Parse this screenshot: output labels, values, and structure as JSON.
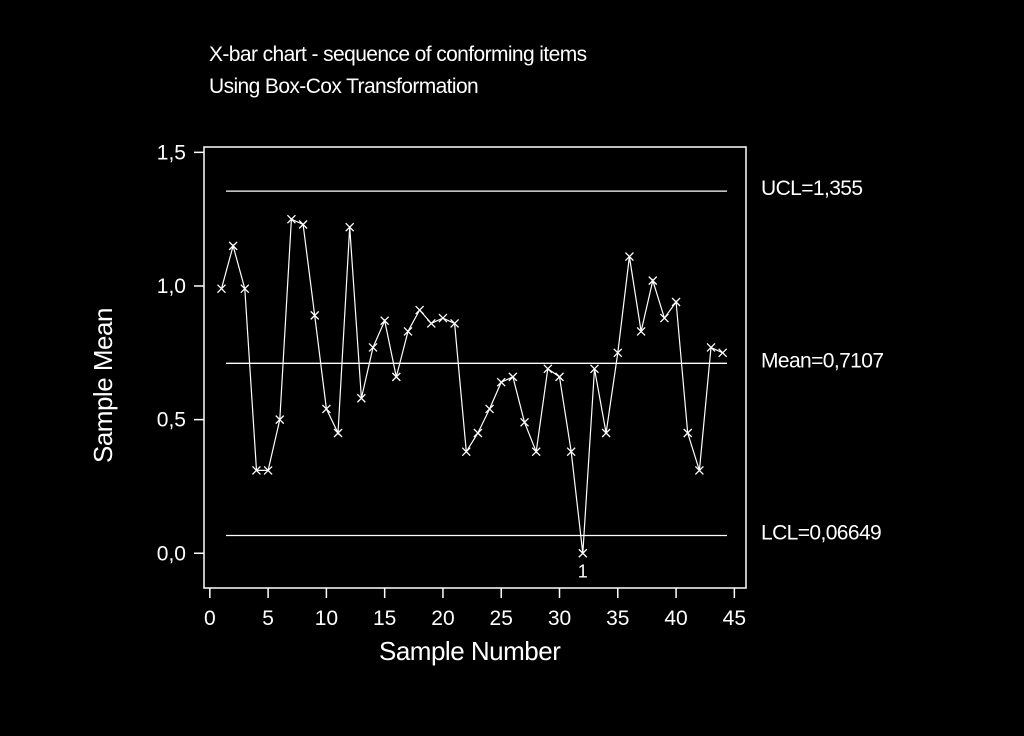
{
  "chart_data": {
    "type": "line",
    "title": "X-bar chart - sequence of conforming items",
    "subtitle": "Using Box-Cox Transformation",
    "xlabel": "Sample Number",
    "ylabel": "Sample Mean",
    "xlim": [
      -0.5,
      46
    ],
    "ylim": [
      -0.13,
      1.52
    ],
    "xticks": [
      0,
      5,
      10,
      15,
      20,
      25,
      30,
      35,
      40,
      45
    ],
    "xtick_labels": [
      "0",
      "5",
      "10",
      "15",
      "20",
      "25",
      "30",
      "35",
      "40",
      "45"
    ],
    "yticks": [
      0,
      0.5,
      1.0,
      1.5
    ],
    "ytick_labels": [
      "0,0",
      "0,5",
      "1,0",
      "1,5"
    ],
    "x": [
      1,
      2,
      3,
      4,
      5,
      6,
      7,
      8,
      9,
      10,
      11,
      12,
      13,
      14,
      15,
      16,
      17,
      18,
      19,
      20,
      21,
      22,
      23,
      24,
      25,
      26,
      27,
      28,
      29,
      30,
      31,
      32,
      33,
      34,
      35,
      36,
      37,
      38,
      39,
      40,
      41,
      42,
      43,
      44
    ],
    "values": [
      0.99,
      1.15,
      0.99,
      0.31,
      0.31,
      0.5,
      1.25,
      1.23,
      0.89,
      0.54,
      0.45,
      1.22,
      0.58,
      0.77,
      0.87,
      0.66,
      0.83,
      0.91,
      0.86,
      0.88,
      0.86,
      0.38,
      0.45,
      0.54,
      0.64,
      0.66,
      0.49,
      0.38,
      0.69,
      0.66,
      0.38,
      0.0,
      0.69,
      0.45,
      0.75,
      1.11,
      0.83,
      1.02,
      0.88,
      0.94,
      0.45,
      0.31,
      0.77,
      0.75
    ],
    "control_lines": [
      {
        "value": 1.355,
        "label": "UCL=1,355"
      },
      {
        "value": 0.7107,
        "label": "Mean=0,7107"
      },
      {
        "value": 0.06649,
        "label": "LCL=0,06649"
      }
    ],
    "flagged_points": [
      {
        "x": 32,
        "label": "1"
      }
    ],
    "grid": false,
    "colors": {
      "background": "#000000",
      "foreground": "#ffffff"
    }
  }
}
